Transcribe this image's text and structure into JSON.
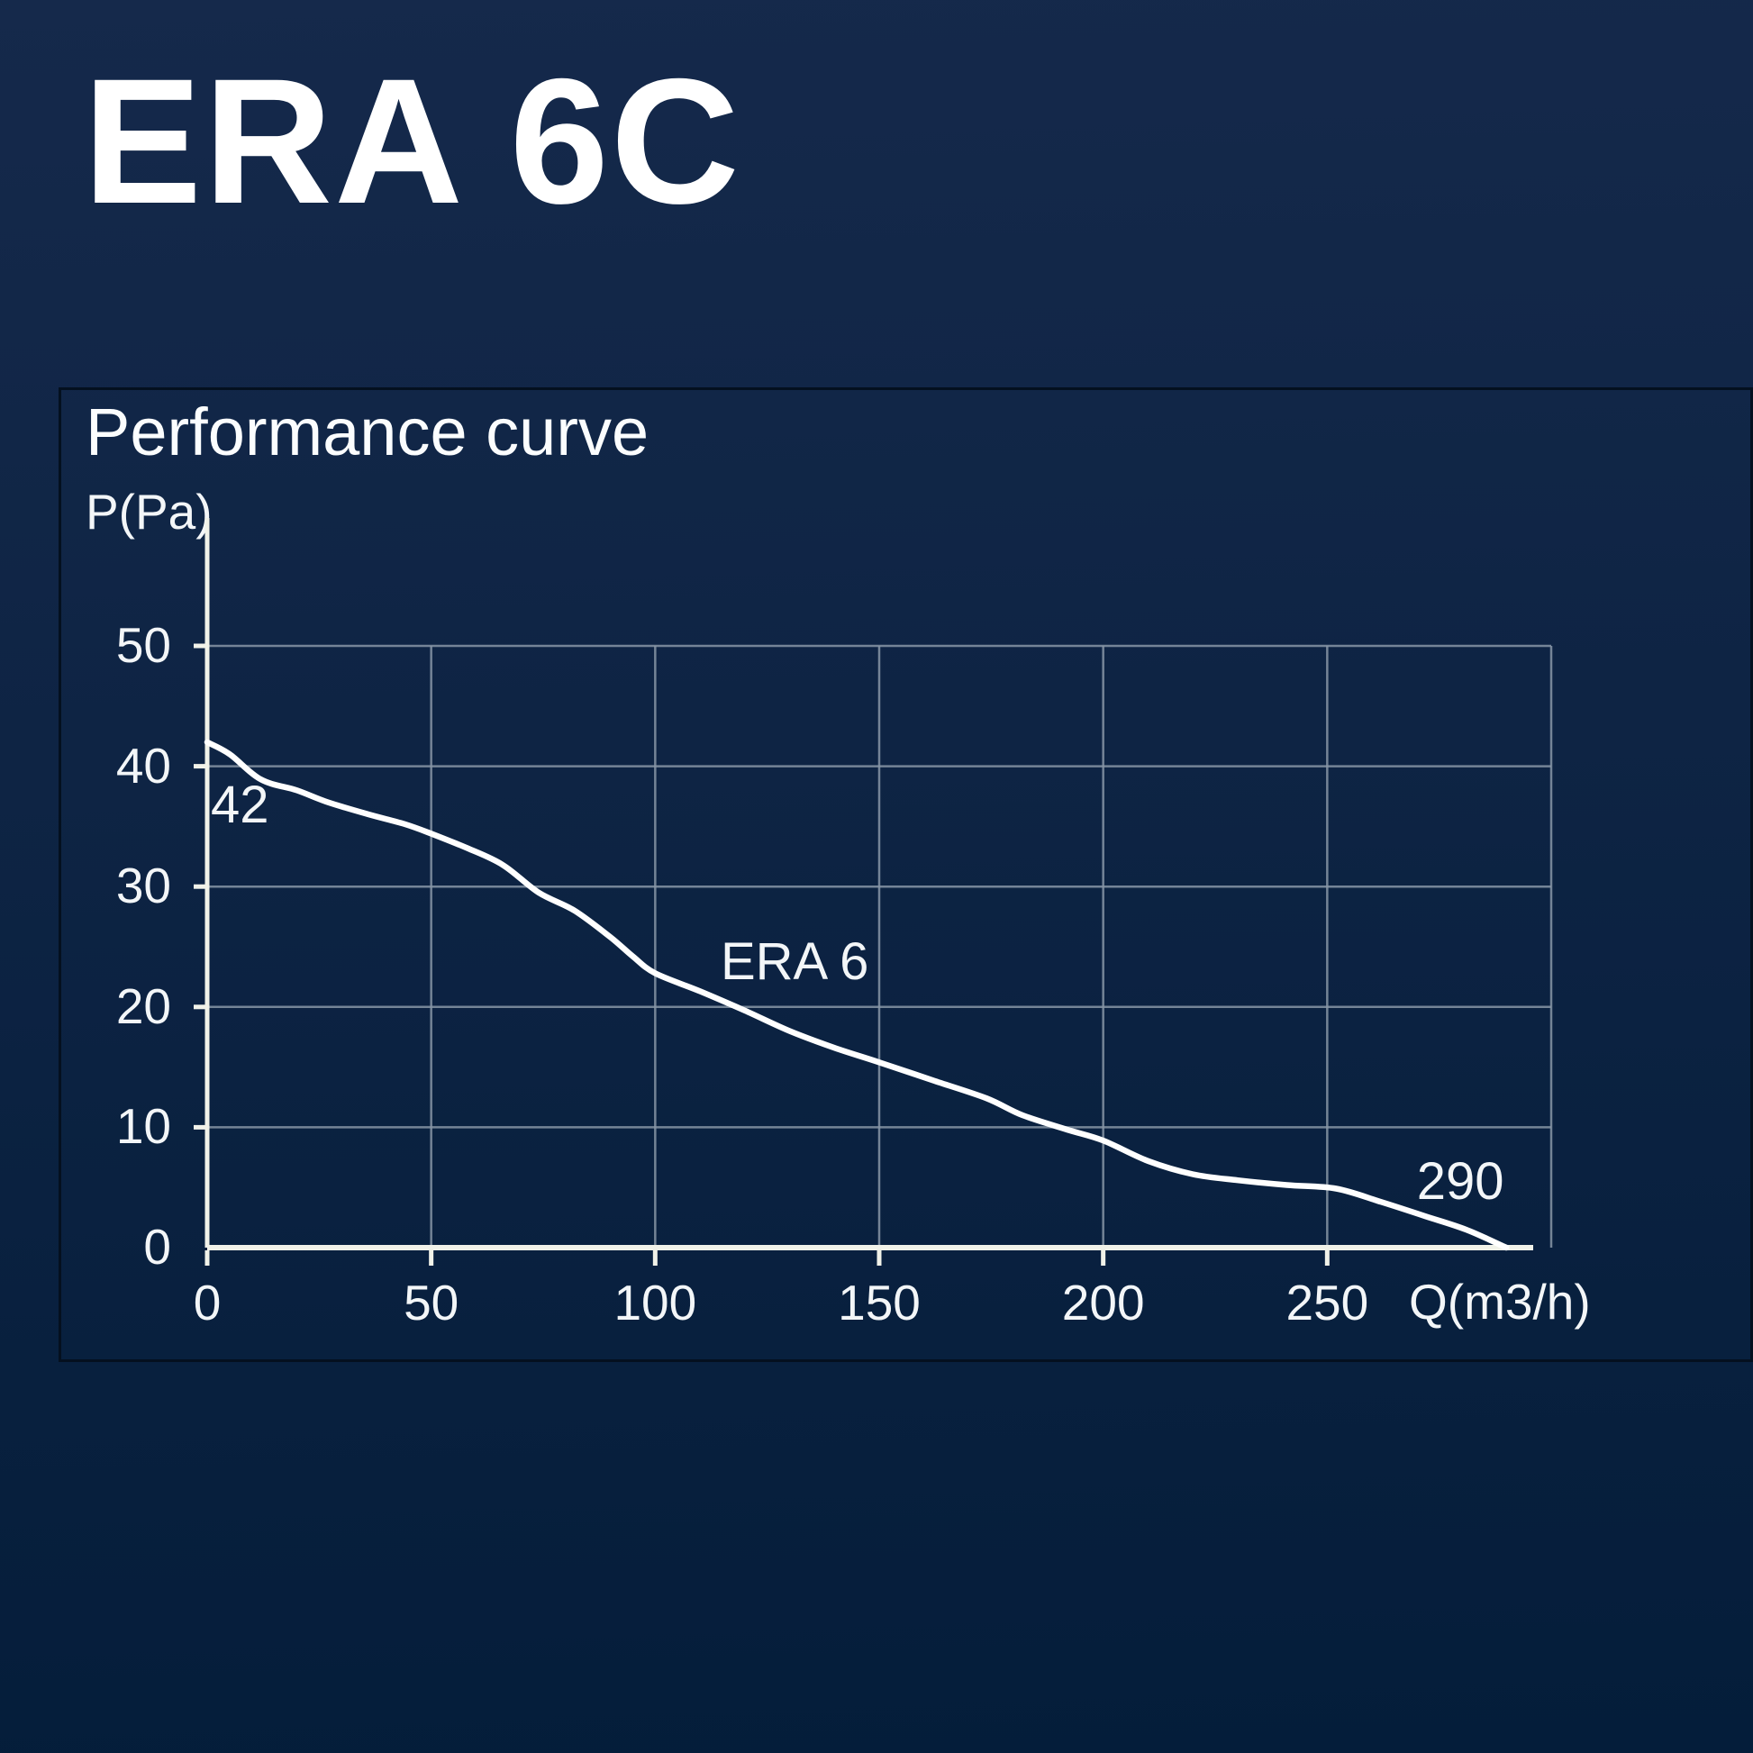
{
  "page": {
    "title": "ERA 6C"
  },
  "panel": {
    "title": "Performance curve"
  },
  "chart_data": {
    "type": "line",
    "title": "Performance curve",
    "xlabel": "Q(m3/h)",
    "ylabel": "P(Pa)",
    "xlim": [
      0,
      300
    ],
    "ylim": [
      0,
      50
    ],
    "x_ticks": [
      0,
      50,
      100,
      150,
      200,
      250
    ],
    "y_ticks": [
      0,
      10,
      20,
      30,
      40,
      50
    ],
    "grid": true,
    "legend_position": "inline-annotation",
    "series": [
      {
        "name": "ERA 6",
        "max_static_pressure_pa": 42,
        "max_flow_m3h": 290,
        "points": [
          [
            0,
            42
          ],
          [
            5,
            41
          ],
          [
            12,
            38.9
          ],
          [
            20,
            38
          ],
          [
            27,
            37
          ],
          [
            36,
            36
          ],
          [
            44,
            35.2
          ],
          [
            50,
            34.4
          ],
          [
            58,
            33.2
          ],
          [
            66,
            31.8
          ],
          [
            74,
            29.5
          ],
          [
            82,
            28
          ],
          [
            90,
            25.8
          ],
          [
            95,
            24.2
          ],
          [
            100,
            22.8
          ],
          [
            110,
            21.3
          ],
          [
            120,
            19.7
          ],
          [
            130,
            18
          ],
          [
            140,
            16.6
          ],
          [
            150,
            15.4
          ],
          [
            162,
            13.9
          ],
          [
            174,
            12.4
          ],
          [
            182,
            11
          ],
          [
            192,
            9.8
          ],
          [
            200,
            8.9
          ],
          [
            210,
            7.2
          ],
          [
            220,
            6.1
          ],
          [
            230,
            5.6
          ],
          [
            241,
            5.2
          ],
          [
            252,
            4.9
          ],
          [
            262,
            3.8
          ],
          [
            272,
            2.6
          ],
          [
            281,
            1.5
          ],
          [
            290,
            0
          ]
        ]
      }
    ],
    "annotations": [
      {
        "id": "start-pressure",
        "text": "42",
        "q": 0.8,
        "p": 39.0
      },
      {
        "id": "series-name",
        "text": "ERA 6",
        "q": 114.6,
        "p": 26.0
      },
      {
        "id": "max-flow",
        "text": "290",
        "q": 270.0,
        "p": 7.7
      }
    ],
    "colors": {
      "background_top": "#15294b",
      "background_bottom": "#041d3a",
      "panel_border": "#04101f",
      "grid": "#8795a6",
      "axis": "#f1f2e9",
      "curve": "#ffffff",
      "text": "#f3f6f8"
    }
  }
}
